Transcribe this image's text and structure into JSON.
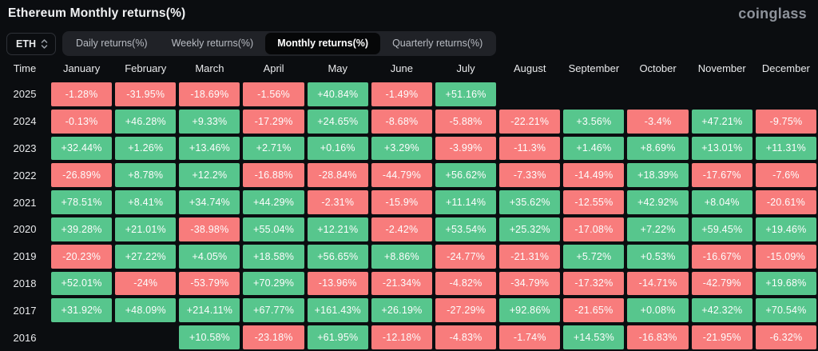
{
  "header": {
    "title": "Ethereum Monthly returns(%)",
    "logo": "coinglass"
  },
  "controls": {
    "symbol_select": {
      "value": "ETH"
    },
    "tabs": [
      {
        "label": "Daily returns(%)",
        "active": false
      },
      {
        "label": "Weekly returns(%)",
        "active": false
      },
      {
        "label": "Monthly returns(%)",
        "active": true
      },
      {
        "label": "Quarterly returns(%)",
        "active": false
      }
    ]
  },
  "table": {
    "time_header": "Time"
  },
  "colors": {
    "positive": "#57c68d",
    "negative": "#f87c7c",
    "background": "#0b0d10",
    "active_tab_bg": "#060708"
  },
  "chart_data": {
    "type": "heatmap",
    "title": "Ethereum Monthly returns(%)",
    "columns": [
      "January",
      "February",
      "March",
      "April",
      "May",
      "June",
      "July",
      "August",
      "September",
      "October",
      "November",
      "December"
    ],
    "rows": [
      {
        "year": "2025",
        "values": [
          "-1.28%",
          "-31.95%",
          "-18.69%",
          "-1.56%",
          "+40.84%",
          "-1.49%",
          "+51.16%",
          "",
          "",
          "",
          "",
          ""
        ]
      },
      {
        "year": "2024",
        "values": [
          "-0.13%",
          "+46.28%",
          "+9.33%",
          "-17.29%",
          "+24.65%",
          "-8.68%",
          "-5.88%",
          "-22.21%",
          "+3.56%",
          "-3.4%",
          "+47.21%",
          "-9.75%"
        ]
      },
      {
        "year": "2023",
        "values": [
          "+32.44%",
          "+1.26%",
          "+13.46%",
          "+2.71%",
          "+0.16%",
          "+3.29%",
          "-3.99%",
          "-11.3%",
          "+1.46%",
          "+8.69%",
          "+13.01%",
          "+11.31%"
        ]
      },
      {
        "year": "2022",
        "values": [
          "-26.89%",
          "+8.78%",
          "+12.2%",
          "-16.88%",
          "-28.84%",
          "-44.79%",
          "+56.62%",
          "-7.33%",
          "-14.49%",
          "+18.39%",
          "-17.67%",
          "-7.6%"
        ]
      },
      {
        "year": "2021",
        "values": [
          "+78.51%",
          "+8.41%",
          "+34.74%",
          "+44.29%",
          "-2.31%",
          "-15.9%",
          "+11.14%",
          "+35.62%",
          "-12.55%",
          "+42.92%",
          "+8.04%",
          "-20.61%"
        ]
      },
      {
        "year": "2020",
        "values": [
          "+39.28%",
          "+21.01%",
          "-38.98%",
          "+55.04%",
          "+12.21%",
          "-2.42%",
          "+53.54%",
          "+25.32%",
          "-17.08%",
          "+7.22%",
          "+59.45%",
          "+19.46%"
        ]
      },
      {
        "year": "2019",
        "values": [
          "-20.23%",
          "+27.22%",
          "+4.05%",
          "+18.58%",
          "+56.65%",
          "+8.86%",
          "-24.77%",
          "-21.31%",
          "+5.72%",
          "+0.53%",
          "-16.67%",
          "-15.09%"
        ]
      },
      {
        "year": "2018",
        "values": [
          "+52.01%",
          "-24%",
          "-53.79%",
          "+70.29%",
          "-13.96%",
          "-21.34%",
          "-4.82%",
          "-34.79%",
          "-17.32%",
          "-14.71%",
          "-42.79%",
          "+19.68%"
        ]
      },
      {
        "year": "2017",
        "values": [
          "+31.92%",
          "+48.09%",
          "+214.11%",
          "+67.77%",
          "+161.43%",
          "+26.19%",
          "-27.29%",
          "+92.86%",
          "-21.65%",
          "+0.08%",
          "+42.32%",
          "+70.54%"
        ]
      },
      {
        "year": "2016",
        "values": [
          "",
          "",
          "+10.58%",
          "-23.18%",
          "+61.95%",
          "-12.18%",
          "-4.83%",
          "-1.74%",
          "+14.53%",
          "-16.83%",
          "-21.95%",
          "-6.32%"
        ]
      }
    ]
  }
}
